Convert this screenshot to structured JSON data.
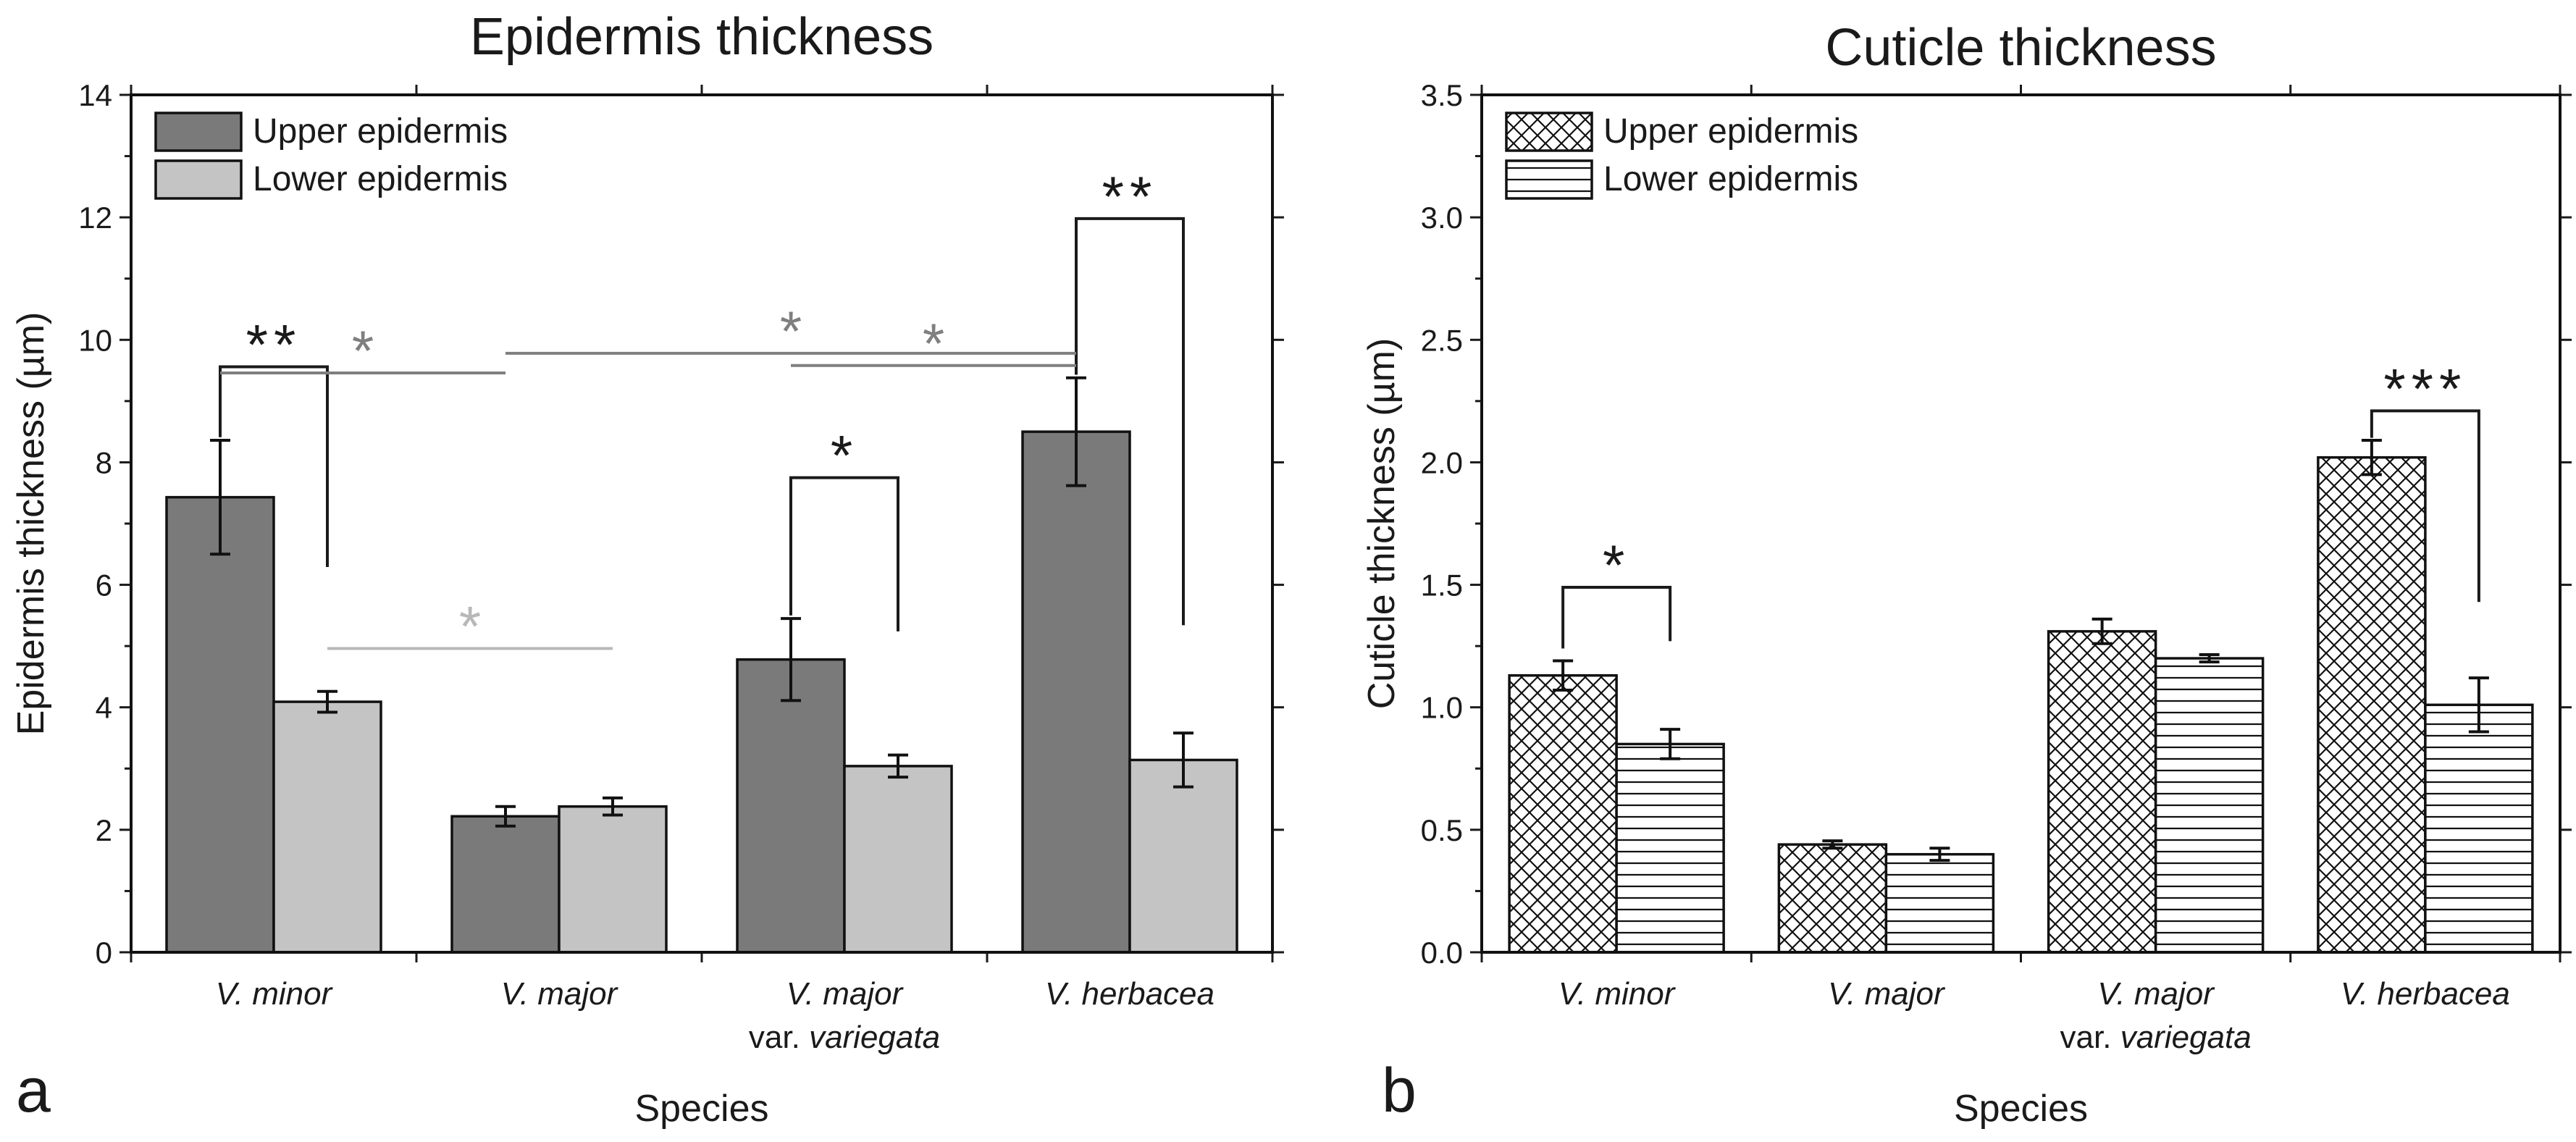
{
  "panels": [
    {
      "letter": "a"
    },
    {
      "letter": "b"
    }
  ],
  "chart_data": [
    {
      "type": "bar",
      "title": "Epidermis thickness",
      "xlabel": "Species",
      "ylabel": "Epidermis thickness (µm)",
      "ylim": [
        0,
        14
      ],
      "yticks": [
        "0",
        "2",
        "4",
        "6",
        "8",
        "10",
        "12",
        "14"
      ],
      "categories": [
        {
          "line1": "V. minor",
          "line2_prefix": "",
          "line2_italic": ""
        },
        {
          "line1": "V. major",
          "line2_prefix": "",
          "line2_italic": ""
        },
        {
          "line1": "V. major",
          "line2_prefix": "var. ",
          "line2_italic": "variegata"
        },
        {
          "line1": "V. herbacea",
          "line2_prefix": "",
          "line2_italic": ""
        }
      ],
      "series": [
        {
          "name": "Upper epidermis",
          "values": [
            7.43,
            2.22,
            4.78,
            8.5
          ],
          "errors": [
            0.93,
            0.16,
            0.67,
            0.88
          ],
          "fill": "#7a7a7a"
        },
        {
          "name": "Lower epidermis",
          "values": [
            4.09,
            2.38,
            3.04,
            3.14
          ],
          "errors": [
            0.17,
            0.14,
            0.18,
            0.44
          ],
          "fill": "#c4c4c4"
        }
      ],
      "legend_position": "top-left",
      "significance": [
        {
          "type": "bracket",
          "from": [
            0,
            0
          ],
          "to": [
            0,
            1
          ],
          "label": "**",
          "color": "#1a1a1a"
        },
        {
          "type": "bracket",
          "from": [
            2,
            0
          ],
          "to": [
            2,
            1
          ],
          "label": "*",
          "color": "#1a1a1a"
        },
        {
          "type": "bracket",
          "from": [
            3,
            0
          ],
          "to": [
            3,
            1
          ],
          "label": "**",
          "color": "#1a1a1a"
        },
        {
          "type": "line",
          "from": [
            0,
            0
          ],
          "to": [
            1,
            0
          ],
          "label": "*",
          "color": "#7f7f7f"
        },
        {
          "type": "line",
          "from": [
            1,
            0
          ],
          "to": [
            3,
            0
          ],
          "label": "*",
          "color": "#7f7f7f"
        },
        {
          "type": "line",
          "from": [
            2,
            0
          ],
          "to": [
            3,
            0
          ],
          "label": "*",
          "color": "#7f7f7f"
        },
        {
          "type": "line",
          "from": [
            0,
            1
          ],
          "to": [
            1,
            1
          ],
          "label": "*",
          "color": "#b8b8b8"
        }
      ]
    },
    {
      "type": "bar",
      "title": "Cuticle thickness",
      "xlabel": "Species",
      "ylabel": "Cuticle thickness (µm)",
      "ylim": [
        0,
        3.5
      ],
      "yticks": [
        "0.0",
        "0.5",
        "1.0",
        "1.5",
        "2.0",
        "2.5",
        "3.0",
        "3.5"
      ],
      "categories": [
        {
          "line1": "V. minor",
          "line2_prefix": "",
          "line2_italic": ""
        },
        {
          "line1": "V. major",
          "line2_prefix": "",
          "line2_italic": ""
        },
        {
          "line1": "V. major",
          "line2_prefix": "var. ",
          "line2_italic": "variegata"
        },
        {
          "line1": "V. herbacea",
          "line2_prefix": "",
          "line2_italic": ""
        }
      ],
      "series": [
        {
          "name": "Upper epidermis",
          "values": [
            1.13,
            0.44,
            1.31,
            2.02
          ],
          "errors": [
            0.06,
            0.015,
            0.05,
            0.07
          ],
          "fill": "crosshatch"
        },
        {
          "name": "Lower epidermis",
          "values": [
            0.85,
            0.4,
            1.2,
            1.01
          ],
          "errors": [
            0.06,
            0.025,
            0.015,
            0.11
          ],
          "fill": "horizontal-lines"
        }
      ],
      "legend_position": "top-left",
      "significance": [
        {
          "type": "bracket",
          "from": [
            0,
            0
          ],
          "to": [
            0,
            1
          ],
          "label": "*",
          "color": "#1a1a1a"
        },
        {
          "type": "bracket",
          "from": [
            3,
            0
          ],
          "to": [
            3,
            1
          ],
          "label": "***",
          "color": "#1a1a1a"
        }
      ]
    }
  ]
}
